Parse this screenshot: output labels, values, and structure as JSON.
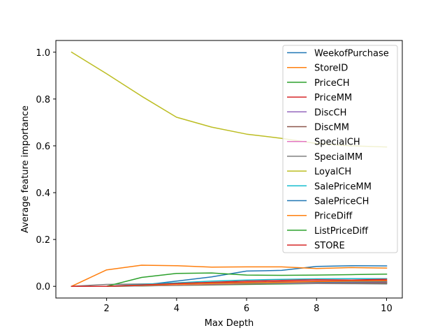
{
  "chart_data": {
    "type": "line",
    "title": "",
    "xlabel": "Max Depth",
    "ylabel": "Average feature importance",
    "xlim": [
      0.55,
      10.45
    ],
    "ylim": [
      -0.05,
      1.05
    ],
    "xticks": [
      2,
      4,
      6,
      8,
      10
    ],
    "xtick_labels": [
      "2",
      "4",
      "6",
      "8",
      "10"
    ],
    "yticks": [
      0.0,
      0.2,
      0.4,
      0.6,
      0.8,
      1.0
    ],
    "ytick_labels": [
      "0.0",
      "0.2",
      "0.4",
      "0.6",
      "0.8",
      "1.0"
    ],
    "grid": false,
    "legend_position": "upper right",
    "x": [
      1,
      2,
      3,
      4,
      5,
      6,
      7,
      8,
      9,
      10
    ],
    "series": [
      {
        "name": "WeekofPurchase",
        "color": "#1f77b4",
        "values": [
          0.0,
          0.0,
          0.005,
          0.022,
          0.04,
          0.065,
          0.068,
          0.085,
          0.088,
          0.087
        ]
      },
      {
        "name": "StoreID",
        "color": "#ff7f0e",
        "values": [
          0.0,
          0.07,
          0.09,
          0.088,
          0.082,
          0.083,
          0.083,
          0.076,
          0.08,
          0.078
        ]
      },
      {
        "name": "PriceCH",
        "color": "#2ca02c",
        "values": [
          0.0,
          0.0,
          0.002,
          0.004,
          0.006,
          0.008,
          0.01,
          0.012,
          0.012,
          0.013
        ]
      },
      {
        "name": "PriceMM",
        "color": "#d62728",
        "values": [
          0.0,
          0.0,
          0.005,
          0.01,
          0.015,
          0.017,
          0.02,
          0.022,
          0.024,
          0.025
        ]
      },
      {
        "name": "DiscCH",
        "color": "#9467bd",
        "values": [
          0.0,
          0.0,
          0.004,
          0.008,
          0.01,
          0.012,
          0.014,
          0.015,
          0.016,
          0.017
        ]
      },
      {
        "name": "DiscMM",
        "color": "#8c564b",
        "values": [
          0.0,
          0.0,
          0.002,
          0.005,
          0.007,
          0.01,
          0.012,
          0.013,
          0.014,
          0.015
        ]
      },
      {
        "name": "SpecialCH",
        "color": "#e377c2",
        "values": [
          0.0,
          0.0,
          0.003,
          0.006,
          0.01,
          0.012,
          0.015,
          0.017,
          0.018,
          0.019
        ]
      },
      {
        "name": "SpecialMM",
        "color": "#7f7f7f",
        "values": [
          0.0,
          0.008,
          0.01,
          0.012,
          0.013,
          0.012,
          0.012,
          0.012,
          0.011,
          0.01
        ]
      },
      {
        "name": "LoyalCH",
        "color": "#bcbd22",
        "values": [
          1.0,
          0.908,
          0.812,
          0.722,
          0.68,
          0.65,
          0.632,
          0.61,
          0.6,
          0.595
        ]
      },
      {
        "name": "SalePriceMM",
        "color": "#17becf",
        "values": [
          0.0,
          0.0,
          0.008,
          0.015,
          0.022,
          0.027,
          0.03,
          0.032,
          0.033,
          0.033
        ]
      },
      {
        "name": "SalePriceCH",
        "color": "#1f77b4",
        "values": [
          0.0,
          0.0,
          0.003,
          0.008,
          0.012,
          0.015,
          0.017,
          0.018,
          0.019,
          0.02
        ]
      },
      {
        "name": "PriceDiff",
        "color": "#ff7f0e",
        "values": [
          0.0,
          0.0,
          0.004,
          0.008,
          0.012,
          0.015,
          0.017,
          0.02,
          0.022,
          0.023
        ]
      },
      {
        "name": "ListPriceDiff",
        "color": "#2ca02c",
        "values": [
          0.0,
          0.0,
          0.038,
          0.055,
          0.057,
          0.048,
          0.047,
          0.048,
          0.05,
          0.052
        ]
      },
      {
        "name": "STORE",
        "color": "#d62728",
        "values": [
          0.0,
          0.0,
          0.006,
          0.012,
          0.017,
          0.022,
          0.025,
          0.028,
          0.027,
          0.03
        ]
      }
    ]
  }
}
